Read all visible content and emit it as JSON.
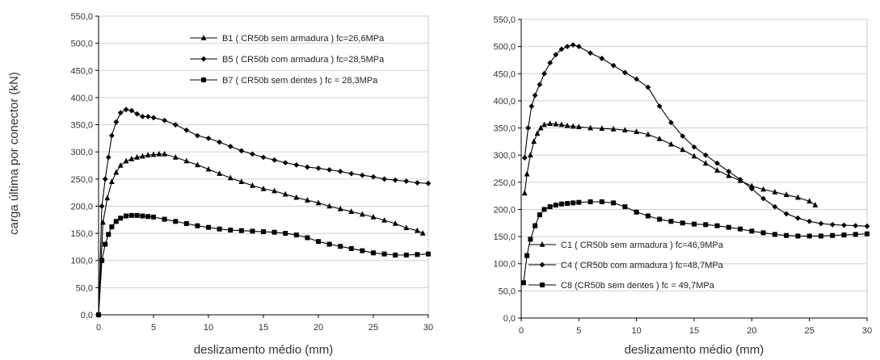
{
  "shared_ylabel": "carga última por conector (kN)",
  "chart_data": [
    {
      "type": "line",
      "xlabel": "deslizamento médio (mm)",
      "ylabel": "",
      "xlim": [
        0,
        30
      ],
      "ylim": [
        0,
        550
      ],
      "xticks": [
        "0",
        "5",
        "10",
        "15",
        "20",
        "25",
        "30"
      ],
      "yticks": [
        "0,0",
        "50,0",
        "100,0",
        "150,0",
        "200,0",
        "250,0",
        "300,0",
        "350,0",
        "400,0",
        "450,0",
        "500,0",
        "550,0"
      ],
      "grid": "horizontal",
      "legend_position": "top-right",
      "series": [
        {
          "name": "B1 ( CR50b sem armadura ) fc=26,6MPa",
          "marker": "triangle",
          "x": [
            0,
            0.4,
            0.8,
            1.2,
            1.6,
            2.0,
            2.5,
            3.0,
            3.5,
            4.0,
            4.5,
            5.0,
            5.5,
            6.0,
            7,
            8,
            9,
            10,
            11,
            12,
            13,
            14,
            15,
            16,
            17,
            18,
            19,
            20,
            21,
            22,
            23,
            24,
            25,
            26,
            27,
            28,
            29,
            29.5
          ],
          "y": [
            0,
            170,
            215,
            245,
            262,
            275,
            283,
            287,
            290,
            292,
            294,
            295,
            296,
            296,
            290,
            283,
            276,
            268,
            260,
            252,
            245,
            238,
            232,
            228,
            222,
            216,
            211,
            206,
            200,
            195,
            190,
            185,
            180,
            174,
            168,
            160,
            155,
            150
          ]
        },
        {
          "name": "B5 ( CR50b com armadura ) fc=28,5MPa",
          "marker": "diamond",
          "x": [
            0,
            0.3,
            0.6,
            0.9,
            1.2,
            1.6,
            2.0,
            2.5,
            3.0,
            3.5,
            4.0,
            4.5,
            5.0,
            6,
            7,
            8,
            9,
            10,
            11,
            12,
            13,
            14,
            15,
            16,
            17,
            18,
            19,
            20,
            21,
            22,
            23,
            24,
            25,
            26,
            27,
            28,
            29,
            30
          ],
          "y": [
            0,
            200,
            250,
            290,
            330,
            355,
            372,
            378,
            376,
            370,
            365,
            365,
            363,
            358,
            350,
            340,
            330,
            325,
            318,
            310,
            302,
            296,
            290,
            285,
            280,
            276,
            272,
            270,
            267,
            264,
            260,
            257,
            254,
            250,
            248,
            246,
            243,
            242
          ]
        },
        {
          "name": "B7 ( CR50b sem dentes )  fc = 28,3MPa",
          "marker": "square",
          "x": [
            0,
            0.3,
            0.6,
            0.9,
            1.2,
            1.6,
            2.0,
            2.5,
            3.0,
            3.5,
            4.0,
            4.5,
            5.0,
            6,
            7,
            8,
            9,
            10,
            11,
            12,
            13,
            14,
            15,
            16,
            17,
            18,
            19,
            20,
            21,
            22,
            23,
            24,
            25,
            26,
            27,
            28,
            29,
            30
          ],
          "y": [
            0,
            100,
            130,
            148,
            162,
            172,
            178,
            182,
            183,
            183,
            182,
            181,
            180,
            176,
            172,
            168,
            164,
            161,
            158,
            156,
            155,
            154,
            153,
            152,
            150,
            147,
            142,
            135,
            130,
            126,
            122,
            118,
            114,
            112,
            110,
            110,
            111,
            112
          ]
        }
      ]
    },
    {
      "type": "line",
      "xlabel": "deslizamento médio (mm)",
      "ylabel": "",
      "xlim": [
        0,
        30
      ],
      "ylim": [
        0,
        550
      ],
      "xticks": [
        "0",
        "5",
        "10",
        "15",
        "20",
        "25",
        "30"
      ],
      "yticks": [
        "0,0",
        "50,0",
        "100,0",
        "150,0",
        "200,0",
        "250,0",
        "300,0",
        "350,0",
        "400,0",
        "450,0",
        "500,0",
        "550,0"
      ],
      "grid": "horizontal",
      "legend_position": "bottom-left",
      "series": [
        {
          "name": "C1 ( CR50b sem armadura ) fc=46,9MPa",
          "marker": "triangle",
          "x": [
            0.3,
            0.5,
            0.8,
            1.1,
            1.4,
            1.7,
            2.0,
            2.5,
            3.0,
            3.5,
            4.0,
            4.5,
            5.0,
            6,
            7,
            8,
            9,
            10,
            11,
            12,
            13,
            14,
            15,
            16,
            17,
            18,
            19,
            20,
            21,
            22,
            23,
            24,
            25,
            25.5
          ],
          "y": [
            230,
            265,
            300,
            325,
            340,
            350,
            356,
            358,
            357,
            356,
            354,
            353,
            352,
            350,
            349,
            348,
            346,
            343,
            338,
            330,
            320,
            310,
            298,
            285,
            272,
            262,
            253,
            243,
            237,
            232,
            227,
            222,
            215,
            208
          ]
        },
        {
          "name": "C4 ( CR50b com armadura )   fc=48,7MPa",
          "marker": "diamond",
          "x": [
            0.3,
            0.6,
            0.9,
            1.2,
            1.6,
            2.0,
            2.5,
            3.0,
            3.5,
            4.0,
            4.5,
            5.0,
            6,
            7,
            8,
            9,
            10,
            11,
            12,
            13,
            14,
            15,
            16,
            17,
            18,
            19,
            20,
            21,
            22,
            23,
            24,
            25,
            26,
            27,
            28,
            29,
            30
          ],
          "y": [
            295,
            350,
            390,
            410,
            430,
            450,
            470,
            485,
            495,
            500,
            503,
            500,
            488,
            478,
            465,
            452,
            440,
            425,
            390,
            360,
            335,
            315,
            300,
            285,
            270,
            255,
            238,
            220,
            205,
            192,
            184,
            178,
            174,
            172,
            171,
            170,
            169
          ]
        },
        {
          "name": "C8 (CR50b sem dentes )  fc = 49,7MPa",
          "marker": "square",
          "x": [
            0.2,
            0.5,
            0.8,
            1.2,
            1.6,
            2.0,
            2.5,
            3.0,
            3.5,
            4.0,
            4.5,
            5.0,
            6,
            7,
            8,
            9,
            10,
            11,
            12,
            13,
            14,
            15,
            16,
            17,
            18,
            19,
            20,
            21,
            22,
            23,
            24,
            25,
            26,
            27,
            28,
            29,
            30
          ],
          "y": [
            65,
            115,
            145,
            170,
            190,
            200,
            205,
            208,
            210,
            211,
            212,
            213,
            214,
            214,
            212,
            205,
            195,
            188,
            182,
            178,
            175,
            173,
            172,
            170,
            167,
            164,
            160,
            157,
            154,
            152,
            151,
            151,
            151,
            152,
            153,
            154,
            155
          ]
        }
      ]
    }
  ]
}
